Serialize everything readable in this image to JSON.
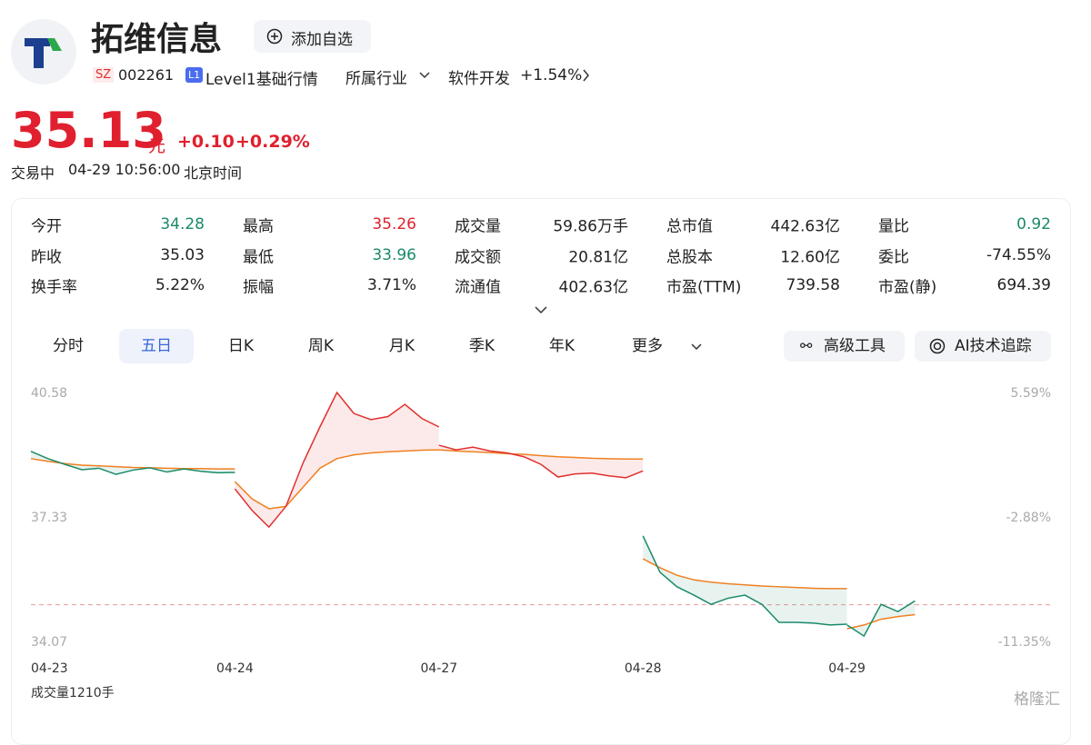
{
  "header": {
    "name": "拓维信息",
    "add_button": "添加自选",
    "market": "SZ",
    "code": "002261",
    "level_badge": "L1",
    "level": "Level1基础行情",
    "industry_label": "所属行业",
    "industry": "软件开发",
    "industry_change": "+1.54%"
  },
  "quote": {
    "price": "35.13",
    "unit": "元",
    "change": "+0.10",
    "change_pct": "+0.29%",
    "status": "交易中",
    "time": "04-29 10:56:00",
    "timezone": "北京时间",
    "color": "#e0202e"
  },
  "stats": [
    {
      "label": "今开",
      "value": "34.28",
      "color": "#1a8a6a"
    },
    {
      "label": "最高",
      "value": "35.26",
      "color": "#e0202e"
    },
    {
      "label": "成交量",
      "value": "59.86万手",
      "color": "#222222"
    },
    {
      "label": "总市值",
      "value": "442.63亿",
      "color": "#222222"
    },
    {
      "label": "量比",
      "value": "0.92",
      "color": "#1a8a6a"
    },
    {
      "label": "昨收",
      "value": "35.03",
      "color": "#222222"
    },
    {
      "label": "最低",
      "value": "33.96",
      "color": "#1a8a6a"
    },
    {
      "label": "成交额",
      "value": "20.81亿",
      "color": "#222222"
    },
    {
      "label": "总股本",
      "value": "12.60亿",
      "color": "#222222"
    },
    {
      "label": "委比",
      "value": "-74.55%",
      "color": "#222222"
    },
    {
      "label": "换手率",
      "value": "5.22%",
      "color": "#222222"
    },
    {
      "label": "振幅",
      "value": "3.71%",
      "color": "#222222"
    },
    {
      "label": "流通值",
      "value": "402.63亿",
      "color": "#222222"
    },
    {
      "label": "市盈(TTM)",
      "value": "739.58",
      "color": "#222222"
    },
    {
      "label": "市盈(静)",
      "value": "694.39",
      "color": "#222222"
    }
  ],
  "tabs": [
    "分时",
    "五日",
    "日K",
    "周K",
    "月K",
    "季K",
    "年K",
    "更多"
  ],
  "selected_tab": 1,
  "tools": [
    "高级工具",
    "AI技术追踪"
  ],
  "chart_data": {
    "type": "line",
    "categories": [
      "04-23",
      "04-24",
      "04-27",
      "04-28",
      "04-29"
    ],
    "ylim": [
      34.07,
      40.58
    ],
    "yticks": [
      40.58,
      37.33,
      34.07
    ],
    "y2lim": [
      -11.35,
      5.59
    ],
    "y2ticks": [
      {
        "value": 5.59,
        "label": "5.59%"
      },
      {
        "value": -2.88,
        "label": "-2.88%"
      },
      {
        "value": -11.35,
        "label": "-11.35%"
      }
    ],
    "price": [
      [
        39.04,
        38.85,
        38.7,
        38.56,
        38.6,
        38.44,
        38.55,
        38.61,
        38.5,
        38.58,
        38.52,
        38.48,
        38.49
      ],
      [
        38.06,
        37.5,
        37.06,
        37.6,
        38.73,
        39.68,
        40.58,
        40.03,
        39.87,
        39.95,
        40.27,
        39.9,
        39.68
      ],
      [
        39.2,
        39.08,
        39.15,
        39.05,
        39.0,
        38.9,
        38.7,
        38.37,
        38.45,
        38.47,
        38.4,
        38.35,
        38.53
      ],
      [
        36.83,
        35.88,
        35.5,
        35.28,
        35.04,
        35.2,
        35.28,
        35.04,
        34.57,
        34.57,
        34.55,
        34.5,
        34.52
      ],
      [
        34.5,
        34.21,
        35.04,
        34.85,
        35.13
      ]
    ],
    "average": [
      [
        38.85,
        38.78,
        38.72,
        38.68,
        38.66,
        38.64,
        38.62,
        38.61,
        38.6,
        38.59,
        38.59,
        38.58,
        38.58
      ],
      [
        38.25,
        37.8,
        37.54,
        37.6,
        38.1,
        38.6,
        38.85,
        38.95,
        39.0,
        39.03,
        39.05,
        39.07,
        39.08
      ],
      [
        39.08,
        39.05,
        39.03,
        39.01,
        38.98,
        38.96,
        38.93,
        38.9,
        38.88,
        38.86,
        38.85,
        38.84,
        38.84
      ],
      [
        36.23,
        36.0,
        35.8,
        35.68,
        35.62,
        35.58,
        35.55,
        35.52,
        35.5,
        35.48,
        35.46,
        35.45,
        35.45
      ],
      [
        34.4,
        34.5,
        34.65,
        34.72,
        34.77
      ]
    ],
    "day_colors": [
      "#1a8a6a",
      "#e0302e",
      "#e0302e",
      "#1a8a6a",
      "#1a8a6a"
    ],
    "average_color": "#f08020",
    "volume_label": "成交量1210手"
  },
  "watermark": "格隆汇"
}
